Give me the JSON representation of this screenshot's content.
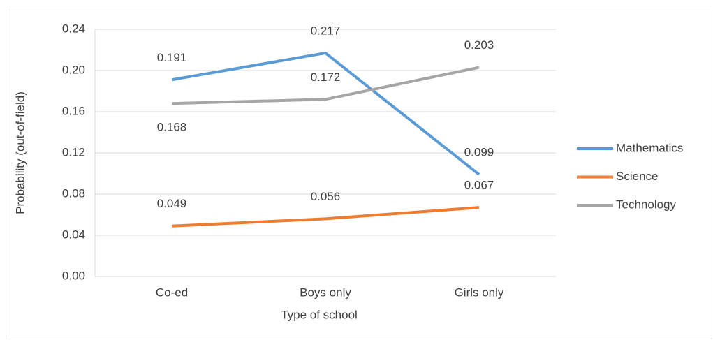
{
  "chart_data": {
    "type": "line",
    "x_label": "Type of school",
    "y_label": "Probability (out-of-field)",
    "categories": [
      "Co-ed",
      "Boys only",
      "Girls only"
    ],
    "series": [
      {
        "name": "Mathematics",
        "color": "#5b9bd5",
        "values": [
          0.191,
          0.217,
          0.099
        ]
      },
      {
        "name": "Science",
        "color": "#ed7d31",
        "values": [
          0.049,
          0.056,
          0.067
        ]
      },
      {
        "name": "Technology",
        "color": "#a5a5a5",
        "values": [
          0.168,
          0.172,
          0.203
        ]
      }
    ],
    "ylim": [
      0,
      0.24
    ],
    "yticks": [
      {
        "value": 0,
        "label": "0.00"
      },
      0.04,
      0.08,
      0.12,
      0.16,
      {
        "value": 0.2,
        "label": "0.20"
      },
      0.24
    ],
    "grid": true,
    "legend": "right"
  }
}
